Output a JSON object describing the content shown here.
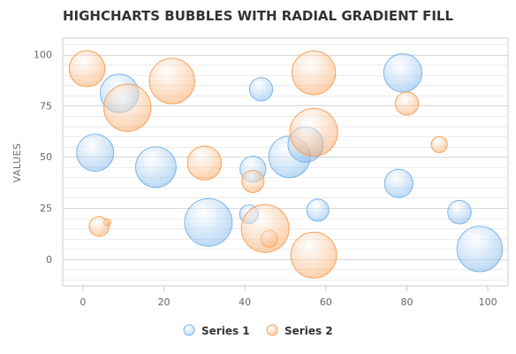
{
  "chart_data": {
    "type": "scatter",
    "subtype": "bubble",
    "title": "HIGHCHARTS BUBBLES WITH RADIAL GRADIENT FILL",
    "xlabel": "",
    "ylabel": "VALUES",
    "xlim": [
      -5,
      105
    ],
    "ylim": [
      -13,
      108
    ],
    "xticks": [
      0,
      20,
      40,
      60,
      80,
      100
    ],
    "yticks": [
      0,
      25,
      50,
      75,
      100
    ],
    "grid": true,
    "legend": "bottom-center",
    "series": [
      {
        "name": "Series 1",
        "color": "#7cb5ec",
        "points": [
          {
            "x": 9,
            "y": 81,
            "z": 63
          },
          {
            "x": 98,
            "y": 5,
            "z": 89
          },
          {
            "x": 51,
            "y": 50,
            "z": 73
          },
          {
            "x": 41,
            "y": 22,
            "z": 14
          },
          {
            "x": 58,
            "y": 24,
            "z": 20
          },
          {
            "x": 78,
            "y": 37,
            "z": 34
          },
          {
            "x": 55,
            "y": 56,
            "z": 53
          },
          {
            "x": 18,
            "y": 45,
            "z": 70
          },
          {
            "x": 42,
            "y": 44,
            "z": 28
          },
          {
            "x": 3,
            "y": 52,
            "z": 59
          },
          {
            "x": 31,
            "y": 18,
            "z": 97
          },
          {
            "x": 79,
            "y": 91,
            "z": 63
          },
          {
            "x": 93,
            "y": 23,
            "z": 23
          },
          {
            "x": 44,
            "y": 83,
            "z": 22
          }
        ]
      },
      {
        "name": "Series 2",
        "color": "#f7a35c",
        "points": [
          {
            "x": 42,
            "y": 38,
            "z": 20
          },
          {
            "x": 6,
            "y": 18,
            "z": 1
          },
          {
            "x": 1,
            "y": 93,
            "z": 55
          },
          {
            "x": 57,
            "y": 2,
            "z": 90
          },
          {
            "x": 80,
            "y": 76,
            "z": 22
          },
          {
            "x": 11,
            "y": 74,
            "z": 96
          },
          {
            "x": 88,
            "y": 56,
            "z": 10
          },
          {
            "x": 30,
            "y": 47,
            "z": 49
          },
          {
            "x": 57,
            "y": 62,
            "z": 98
          },
          {
            "x": 4,
            "y": 16,
            "z": 16
          },
          {
            "x": 46,
            "y": 10,
            "z": 11
          },
          {
            "x": 22,
            "y": 87,
            "z": 89
          },
          {
            "x": 57,
            "y": 91,
            "z": 82
          },
          {
            "x": 45,
            "y": 15,
            "z": 98
          }
        ]
      }
    ]
  }
}
